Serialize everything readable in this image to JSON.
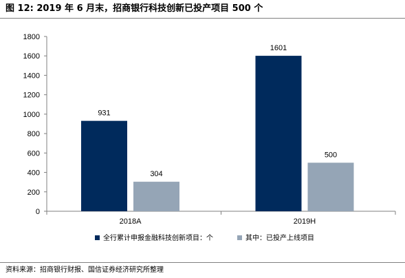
{
  "figure": {
    "title": "图 12: 2019 年 6 月末，招商银行科技创新已投产项目 500 个",
    "source": "资料来源：招商银行财报、国信证券经济研究所整理"
  },
  "chart_data": {
    "type": "bar",
    "categories": [
      "2018A",
      "2019H"
    ],
    "series": [
      {
        "name": "全行累计申报金融科技创新项目：个",
        "values": [
          931,
          1601
        ],
        "color": "#002a5c"
      },
      {
        "name": "其中：已投产上线项目",
        "values": [
          304,
          500
        ],
        "color": "#95a5b6"
      }
    ],
    "ylim": [
      0,
      1800
    ],
    "yticks": [
      0,
      200,
      400,
      600,
      800,
      1000,
      1200,
      1400,
      1600,
      1800
    ],
    "grid": false,
    "legend": "bottom",
    "data_labels": true
  }
}
